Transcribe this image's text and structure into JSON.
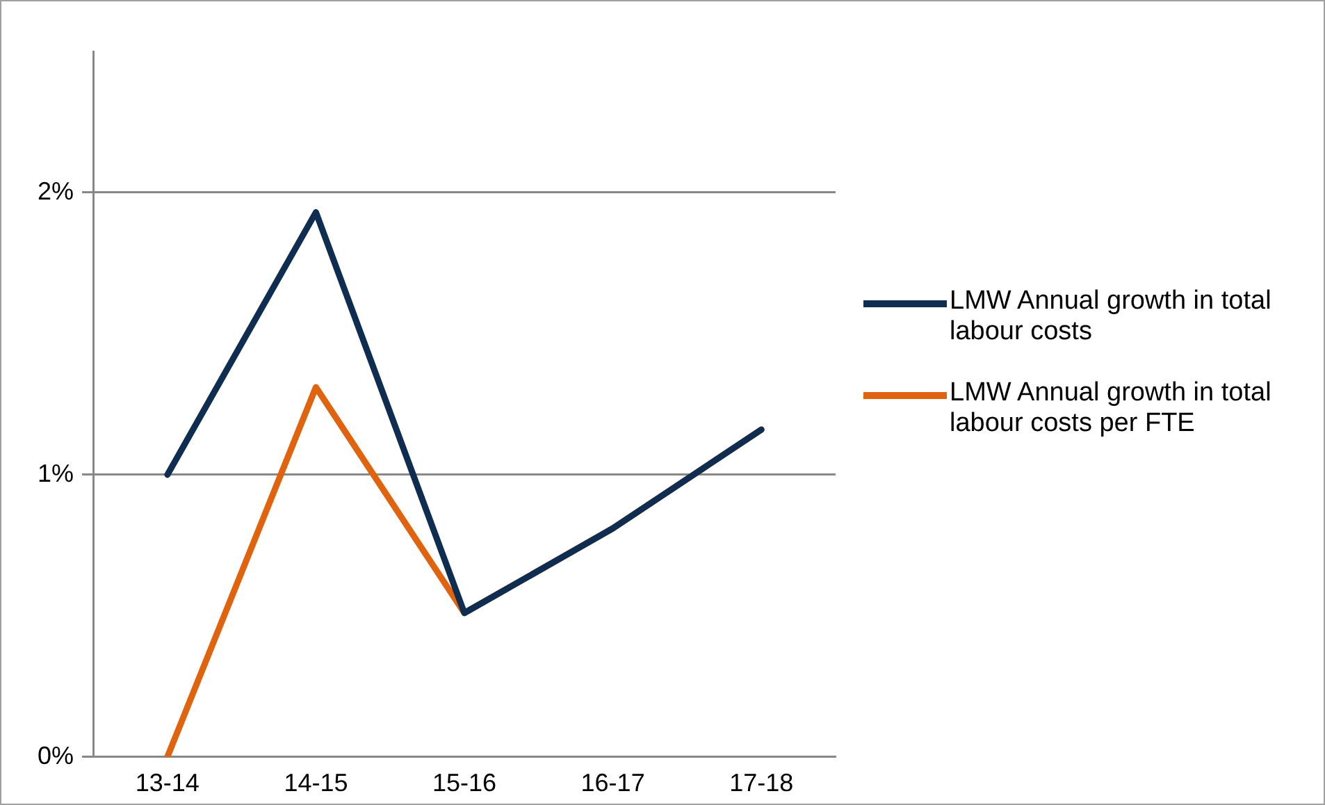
{
  "chart_data": {
    "type": "line",
    "categories": [
      "13-14",
      "14-15",
      "15-16",
      "16-17",
      "17-18"
    ],
    "series": [
      {
        "name": "LMW Annual growth in total labour costs",
        "color": "#0e2d50",
        "values": [
          1.0,
          1.93,
          0.51,
          0.81,
          1.16
        ]
      },
      {
        "name": "LMW Annual growth in total labour costs per FTE",
        "color": "#e0640f",
        "values": [
          0.0,
          1.31,
          0.51,
          0.81,
          1.16
        ]
      }
    ],
    "ylim": [
      0,
      2.5
    ],
    "yticks": [
      {
        "value": 0,
        "label": "0%"
      },
      {
        "value": 1,
        "label": "1%"
      },
      {
        "value": 2,
        "label": "2%"
      }
    ],
    "grid": "y",
    "legend": "right",
    "marker": "none",
    "line_style": "solid"
  }
}
